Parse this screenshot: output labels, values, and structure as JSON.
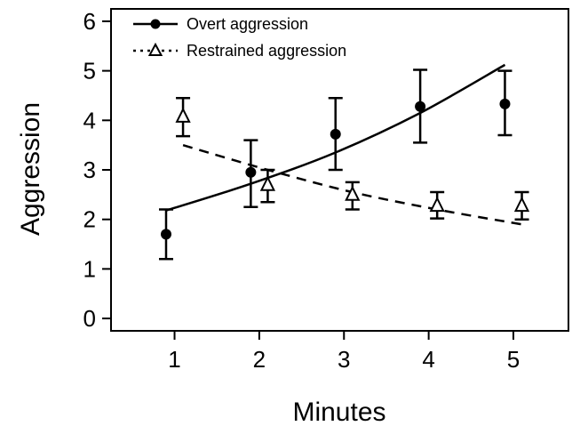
{
  "chart_data": {
    "type": "line",
    "xlabel": "Minutes",
    "ylabel": "Aggression",
    "xlim": [
      0.25,
      5.65
    ],
    "ylim": [
      -0.25,
      6.25
    ],
    "xticks": [
      1,
      2,
      3,
      4,
      5
    ],
    "yticks": [
      0,
      1,
      2,
      3,
      4,
      5,
      6
    ],
    "grid": false,
    "legend_position": "top-left",
    "series": [
      {
        "name": "Overt aggression",
        "marker": "filled-circle",
        "points": [
          {
            "x": 0.9,
            "y": 1.7,
            "err_low": 1.2,
            "err_high": 2.2
          },
          {
            "x": 1.9,
            "y": 2.95,
            "err_low": 2.25,
            "err_high": 3.6
          },
          {
            "x": 2.9,
            "y": 3.72,
            "err_low": 3.0,
            "err_high": 4.45
          },
          {
            "x": 3.9,
            "y": 4.28,
            "err_low": 3.55,
            "err_high": 5.02
          },
          {
            "x": 4.9,
            "y": 4.33,
            "err_low": 3.7,
            "err_high": 5.0
          }
        ],
        "fit": {
          "line_style": "solid",
          "x": [
            0.9,
            1.9,
            2.9,
            3.9,
            4.9
          ],
          "y": [
            2.18,
            2.72,
            3.35,
            4.15,
            5.12
          ]
        }
      },
      {
        "name": "Restrained aggression",
        "marker": "open-triangle",
        "points": [
          {
            "x": 1.1,
            "y": 4.08,
            "err_low": 3.68,
            "err_high": 4.45
          },
          {
            "x": 2.1,
            "y": 2.7,
            "err_low": 2.35,
            "err_high": 3.0
          },
          {
            "x": 3.1,
            "y": 2.5,
            "err_low": 2.2,
            "err_high": 2.75
          },
          {
            "x": 4.1,
            "y": 2.28,
            "err_low": 2.02,
            "err_high": 2.55
          },
          {
            "x": 5.1,
            "y": 2.28,
            "err_low": 2.0,
            "err_high": 2.55
          }
        ],
        "fit": {
          "line_style": "dashed",
          "x": [
            1.1,
            2.1,
            3.1,
            4.1,
            5.1
          ],
          "y": [
            3.5,
            3.0,
            2.55,
            2.2,
            1.9
          ]
        }
      }
    ]
  }
}
